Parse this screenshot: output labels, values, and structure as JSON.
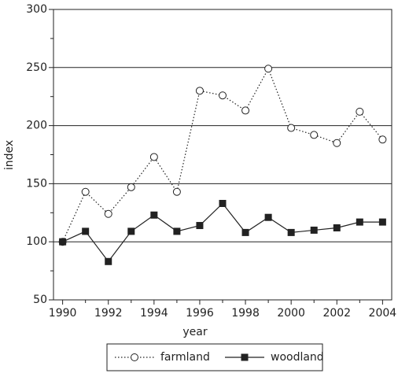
{
  "chart_data": {
    "type": "line",
    "x": [
      1990,
      1991,
      1992,
      1993,
      1994,
      1995,
      1996,
      1997,
      1998,
      1999,
      2000,
      2001,
      2002,
      2003,
      2004
    ],
    "series": [
      {
        "name": "farmland",
        "color": "#222222",
        "values": [
          100,
          143,
          124,
          147,
          173,
          143,
          230,
          226,
          213,
          249,
          198,
          192,
          185,
          212,
          188
        ]
      },
      {
        "name": "woodland",
        "color": "#222222",
        "values": [
          100,
          109,
          83,
          109,
          123,
          109,
          114,
          133,
          108,
          121,
          108,
          110,
          112,
          117,
          117
        ]
      }
    ],
    "xlabel": "year",
    "ylabel": "index",
    "xlim": [
      1989.6,
      2004.4
    ],
    "ylim": [
      50,
      300
    ],
    "xticks": [
      1990,
      1992,
      1994,
      1996,
      1998,
      2000,
      2002,
      2004
    ],
    "xminorticks": [
      1991,
      1993,
      1995,
      1997,
      1999,
      2001,
      2003
    ],
    "yticks": [
      50,
      100,
      150,
      200,
      250,
      300
    ],
    "yminorticks": [
      75,
      125,
      175,
      225,
      275
    ],
    "grid": true,
    "legend": "bottom"
  }
}
